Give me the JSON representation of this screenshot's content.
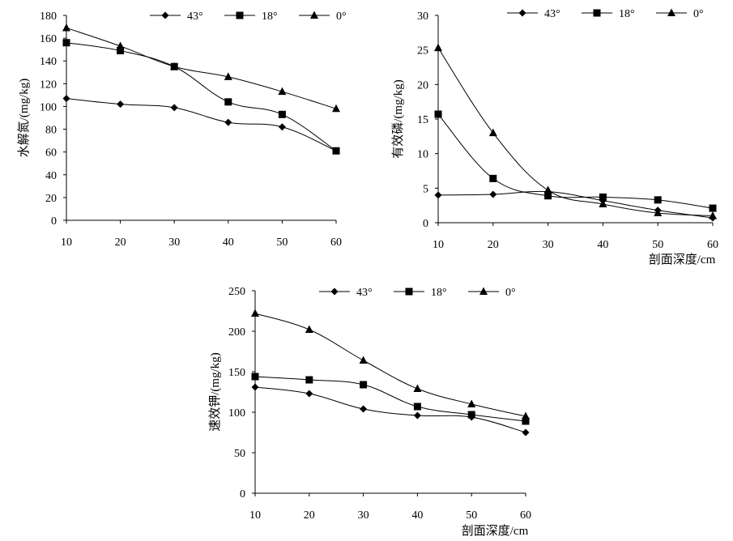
{
  "chart_data": [
    {
      "type": "line",
      "ylabel": "水解氮/(mg/kg)",
      "xlabel": "",
      "x": [
        10,
        20,
        30,
        40,
        50,
        60
      ],
      "xlim": [
        10,
        60
      ],
      "ylim": [
        0,
        180
      ],
      "yticks": [
        0,
        20,
        40,
        60,
        80,
        100,
        120,
        140,
        160,
        180
      ],
      "legend": "top",
      "grid": false,
      "series": [
        {
          "name": "43°",
          "marker": "diamond",
          "values": [
            107,
            102,
            99,
            86,
            82,
            61
          ]
        },
        {
          "name": "18°",
          "marker": "square",
          "values": [
            156,
            149,
            135,
            104,
            93,
            61
          ]
        },
        {
          "name": "0°",
          "marker": "triangle",
          "values": [
            169,
            153,
            135,
            126,
            113,
            98
          ]
        }
      ]
    },
    {
      "type": "line",
      "ylabel": "有效磷/(mg/kg)",
      "xlabel": "剖面深度/cm",
      "x": [
        10,
        20,
        30,
        40,
        50,
        60
      ],
      "xlim": [
        10,
        60
      ],
      "ylim": [
        0,
        30
      ],
      "yticks": [
        0,
        5,
        10,
        15,
        20,
        25,
        30
      ],
      "legend": "top",
      "grid": false,
      "series": [
        {
          "name": "43°",
          "marker": "diamond",
          "values": [
            4.0,
            4.1,
            4.5,
            3.2,
            1.8,
            0.7
          ]
        },
        {
          "name": "18°",
          "marker": "square",
          "values": [
            15.7,
            6.4,
            3.9,
            3.7,
            3.3,
            2.1
          ]
        },
        {
          "name": "0°",
          "marker": "triangle",
          "values": [
            25.3,
            13.0,
            4.7,
            2.7,
            1.4,
            1.0
          ]
        }
      ]
    },
    {
      "type": "line",
      "ylabel": "速效钾/(mg/kg)",
      "xlabel": "剖面深度/cm",
      "x": [
        10,
        20,
        30,
        40,
        50,
        60
      ],
      "xlim": [
        10,
        60
      ],
      "ylim": [
        0,
        250
      ],
      "yticks": [
        0,
        50,
        100,
        150,
        200,
        250
      ],
      "legend": "top",
      "grid": false,
      "series": [
        {
          "name": "43°",
          "marker": "diamond",
          "values": [
            131,
            123,
            104,
            96,
            94,
            75
          ]
        },
        {
          "name": "18°",
          "marker": "square",
          "values": [
            144,
            140,
            134,
            107,
            97,
            89
          ]
        },
        {
          "name": "0°",
          "marker": "triangle",
          "values": [
            222,
            202,
            164,
            129,
            110,
            95
          ]
        }
      ]
    }
  ]
}
